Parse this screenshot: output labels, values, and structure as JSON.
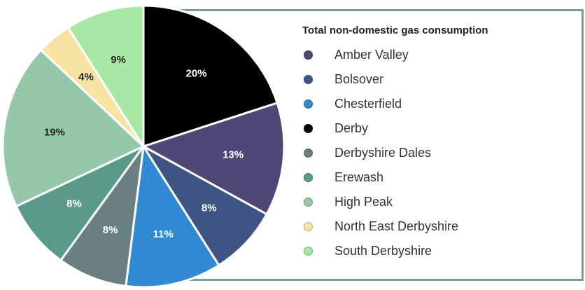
{
  "chart_data": {
    "type": "pie",
    "title": "",
    "legend_title": "Total non-domestic gas consumption",
    "legend_position": "right",
    "categories": [
      "Amber Valley",
      "Bolsover",
      "Chesterfield",
      "Derby",
      "Derbyshire Dales",
      "Erewash",
      "High Peak",
      "North East Derbyshire",
      "South Derbyshire"
    ],
    "values": [
      13,
      8,
      11,
      20,
      8,
      8,
      19,
      4,
      9
    ],
    "labels": [
      "13%",
      "8%",
      "11%",
      "20%",
      "8%",
      "8%",
      "19%",
      "4%",
      "9%"
    ],
    "colors": [
      "#4f4775",
      "#3e5584",
      "#2f8ad3",
      "#000000",
      "#6a7f81",
      "#5a9a88",
      "#94c8a8",
      "#f7e3a3",
      "#a6e8a4"
    ],
    "label_colors": [
      "#ffffff",
      "#ffffff",
      "#ffffff",
      "#ffffff",
      "#ffffff",
      "#ffffff",
      "#222222",
      "#222222",
      "#222222"
    ],
    "slice_order": [
      3,
      0,
      1,
      2,
      4,
      5,
      6,
      7,
      8
    ],
    "start_angle_deg": 0,
    "direction": "clockwise"
  }
}
